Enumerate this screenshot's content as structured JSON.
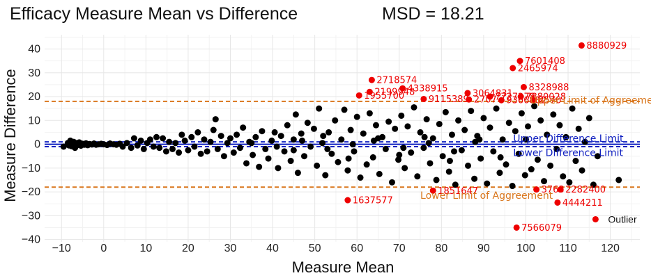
{
  "chart_data": {
    "type": "scatter",
    "title": "Efficacy Measure Mean vs Difference",
    "subtitle": "MSD = 18.21",
    "xlabel": "Measure Mean",
    "ylabel": "Measure Difference",
    "xlim": [
      -14,
      127
    ],
    "ylim": [
      -41,
      46
    ],
    "xticks": [
      -10,
      0,
      10,
      20,
      30,
      40,
      50,
      60,
      70,
      80,
      90,
      100,
      110,
      120
    ],
    "yticks": [
      -40,
      -30,
      -20,
      -10,
      0,
      10,
      20,
      30,
      40
    ],
    "xtick_labels": [
      "−10",
      "0",
      "10",
      "20",
      "30",
      "40",
      "50",
      "60",
      "70",
      "80",
      "90",
      "100",
      "110",
      "120"
    ],
    "ytick_labels": [
      "−40",
      "−30",
      "−20",
      "−10",
      "0",
      "10",
      "20",
      "30",
      "40"
    ],
    "grid": true,
    "colors": {
      "points": "#000000",
      "outlier": "#ee0000",
      "agreement": "#d9761c",
      "difference": "#1020c0"
    },
    "reference_lines": [
      {
        "name": "Upper Limit of Aggreement",
        "y": 18.0,
        "color": "#d9761c",
        "label_x": 101,
        "label_y": 18.5
      },
      {
        "name": "Lower Limit of Aggreement",
        "y": -18.0,
        "color": "#d9761c",
        "label_x": 75,
        "label_y": -21.5
      },
      {
        "name": "Upper Difference Limit",
        "y": 1.0,
        "color": "#1020c0",
        "label_x": 97,
        "label_y": 2.5
      },
      {
        "name": "Lower Difference Limit",
        "y": -1.0,
        "color": "#1020c0",
        "label_x": 97,
        "label_y": -3.5
      }
    ],
    "center_line": {
      "y": 0,
      "color": "#1020c0"
    },
    "legend": {
      "label": "Outlier",
      "position": "bottom-right",
      "x": 116.5,
      "y": -31.5
    },
    "outliers": [
      {
        "id": "8880929",
        "x": 113.2,
        "y": 41.5
      },
      {
        "id": "7601408",
        "x": 98.6,
        "y": 35.0
      },
      {
        "id": "2465974",
        "x": 96.9,
        "y": 32.0
      },
      {
        "id": "2718574",
        "x": 63.5,
        "y": 27.0
      },
      {
        "id": "8328988",
        "x": 99.5,
        "y": 24.0
      },
      {
        "id": "4338915",
        "x": 70.8,
        "y": 23.5
      },
      {
        "id": "2199948",
        "x": 63.0,
        "y": 22.0
      },
      {
        "id": "3064831",
        "x": 86.2,
        "y": 21.5
      },
      {
        "id": "1955700",
        "x": 60.5,
        "y": 20.5
      },
      {
        "id": "7727278",
        "x": 91.5,
        "y": 20.0
      },
      {
        "id": "7880028",
        "x": 98.8,
        "y": 20.0
      },
      {
        "id": "9115389",
        "x": 75.8,
        "y": 19.0
      },
      {
        "id": "2707",
        "x": 86.5,
        "y": 18.8
      },
      {
        "id": "9366882",
        "x": 94.2,
        "y": 18.5
      },
      {
        "id": "2570",
        "x": 101.8,
        "y": 18.5
      },
      {
        "id": "1637577",
        "x": 57.8,
        "y": -23.5
      },
      {
        "id": "1851647",
        "x": 78.0,
        "y": -19.5
      },
      {
        "id": "3763",
        "x": 102.5,
        "y": -19.0
      },
      {
        "id": "2282400",
        "x": 108.2,
        "y": -19.0
      },
      {
        "id": "4444211",
        "x": 107.5,
        "y": -24.5
      },
      {
        "id": "7566079",
        "x": 97.8,
        "y": -35.0
      }
    ],
    "points": [
      [
        -9.5,
        -1.0
      ],
      [
        -8.5,
        0.5
      ],
      [
        -8.2,
        -0.5
      ],
      [
        -7.9,
        1.5
      ],
      [
        -7.6,
        -0.8
      ],
      [
        -7.4,
        0.0
      ],
      [
        -7.1,
        1.0
      ],
      [
        -6.8,
        -1.5
      ],
      [
        -6.5,
        0.5
      ],
      [
        -6.1,
        -0.3
      ],
      [
        -5.8,
        0.8
      ],
      [
        -5.4,
        -0.6
      ],
      [
        -5.0,
        0.2
      ],
      [
        -4.6,
        -0.2
      ],
      [
        -4.2,
        0.4
      ],
      [
        -3.8,
        -0.4
      ],
      [
        -3.3,
        0.1
      ],
      [
        -2.8,
        -0.1
      ],
      [
        -2.3,
        0.3
      ],
      [
        -1.8,
        -0.2
      ],
      [
        -1.2,
        0.0
      ],
      [
        -0.6,
        0.2
      ],
      [
        0.0,
        0.0
      ],
      [
        0.8,
        -0.3
      ],
      [
        1.5,
        0.3
      ],
      [
        2.3,
        0.0
      ],
      [
        3.0,
        -0.2
      ],
      [
        3.8,
        0.2
      ],
      [
        4.5,
        -1.0
      ],
      [
        5.5,
        0.5
      ],
      [
        6.5,
        -1.5
      ],
      [
        7.2,
        2.5
      ],
      [
        8.0,
        -0.5
      ],
      [
        8.8,
        1.5
      ],
      [
        9.5,
        -2.0
      ],
      [
        10.3,
        0.5
      ],
      [
        11.0,
        2.0
      ],
      [
        11.8,
        -1.0
      ],
      [
        12.5,
        3.0
      ],
      [
        13.2,
        -1.5
      ],
      [
        14.0,
        2.5
      ],
      [
        14.8,
        -3.0
      ],
      [
        15.5,
        1.0
      ],
      [
        16.3,
        -2.0
      ],
      [
        17.0,
        0.5
      ],
      [
        17.8,
        -3.5
      ],
      [
        18.5,
        4.0
      ],
      [
        19.2,
        1.5
      ],
      [
        20.0,
        -2.5
      ],
      [
        20.8,
        3.0
      ],
      [
        21.5,
        -1.0
      ],
      [
        22.3,
        5.0
      ],
      [
        23.0,
        -4.0
      ],
      [
        23.8,
        2.0
      ],
      [
        24.5,
        -3.0
      ],
      [
        25.3,
        1.0
      ],
      [
        26.0,
        6.0
      ],
      [
        26.5,
        10.5
      ],
      [
        27.0,
        -2.0
      ],
      [
        27.8,
        3.5
      ],
      [
        28.5,
        -5.0
      ],
      [
        29.3,
        0.5
      ],
      [
        30.0,
        2.5
      ],
      [
        30.8,
        -3.5
      ],
      [
        31.5,
        4.0
      ],
      [
        32.3,
        -1.5
      ],
      [
        33.0,
        7.0
      ],
      [
        33.8,
        -8.0
      ],
      [
        34.5,
        1.0
      ],
      [
        35.3,
        -4.5
      ],
      [
        36.0,
        3.0
      ],
      [
        36.8,
        -9.5
      ],
      [
        37.5,
        5.5
      ],
      [
        38.3,
        -2.0
      ],
      [
        39.0,
        -6.0
      ],
      [
        39.8,
        1.5
      ],
      [
        40.5,
        5.0
      ],
      [
        41.3,
        -10.0
      ],
      [
        42.0,
        3.5
      ],
      [
        42.8,
        -3.0
      ],
      [
        43.5,
        8.0
      ],
      [
        44.3,
        -7.0
      ],
      [
        45.0,
        2.0
      ],
      [
        45.5,
        12.5
      ],
      [
        46.0,
        -12.0
      ],
      [
        46.8,
        4.5
      ],
      [
        47.5,
        -5.0
      ],
      [
        48.3,
        9.0
      ],
      [
        49.0,
        -1.0
      ],
      [
        49.8,
        6.5
      ],
      [
        50.5,
        -9.0
      ],
      [
        51.0,
        15.0
      ],
      [
        51.8,
        0.5
      ],
      [
        52.5,
        -13.0
      ],
      [
        53.3,
        5.0
      ],
      [
        54.0,
        -4.0
      ],
      [
        54.8,
        10.0
      ],
      [
        55.5,
        -7.5
      ],
      [
        56.3,
        2.0
      ],
      [
        57.0,
        14.5
      ],
      [
        57.8,
        -11.0
      ],
      [
        58.5,
        6.0
      ],
      [
        59.3,
        -3.0
      ],
      [
        60.0,
        11.5
      ],
      [
        60.8,
        -14.0
      ],
      [
        61.5,
        4.5
      ],
      [
        62.3,
        -8.5
      ],
      [
        63.0,
        13.0
      ],
      [
        63.8,
        -5.5
      ],
      [
        64.5,
        8.0
      ],
      [
        65.3,
        -12.5
      ],
      [
        66.0,
        3.0
      ],
      [
        66.8,
        -2.0
      ],
      [
        67.5,
        9.5
      ],
      [
        68.3,
        -16.0
      ],
      [
        69.0,
        6.5
      ],
      [
        69.8,
        -6.5
      ],
      [
        70.5,
        12.0
      ],
      [
        71.3,
        -10.0
      ],
      [
        72.0,
        7.5
      ],
      [
        72.8,
        -3.5
      ],
      [
        73.5,
        15.5
      ],
      [
        74.3,
        -13.5
      ],
      [
        75.0,
        5.0
      ],
      [
        75.8,
        -1.5
      ],
      [
        76.5,
        10.5
      ],
      [
        77.3,
        -8.0
      ],
      [
        78.0,
        2.5
      ],
      [
        78.8,
        -15.0
      ],
      [
        79.5,
        8.5
      ],
      [
        80.3,
        -5.0
      ],
      [
        81.0,
        13.5
      ],
      [
        81.8,
        -11.5
      ],
      [
        82.5,
        4.0
      ],
      [
        83.3,
        -17.0
      ],
      [
        84.0,
        10.0
      ],
      [
        84.8,
        -2.5
      ],
      [
        85.5,
        6.0
      ],
      [
        86.3,
        -9.0
      ],
      [
        87.0,
        14.0
      ],
      [
        87.8,
        -14.5
      ],
      [
        88.5,
        3.5
      ],
      [
        89.3,
        -6.0
      ],
      [
        90.0,
        11.0
      ],
      [
        90.8,
        -16.5
      ],
      [
        91.5,
        7.0
      ],
      [
        92.3,
        -3.0
      ],
      [
        93.0,
        15.0
      ],
      [
        93.8,
        -12.0
      ],
      [
        94.5,
        2.0
      ],
      [
        95.3,
        -8.5
      ],
      [
        96.0,
        9.0
      ],
      [
        96.8,
        -17.5
      ],
      [
        97.5,
        5.5
      ],
      [
        98.3,
        -4.0
      ],
      [
        99.0,
        13.0
      ],
      [
        99.8,
        -13.0
      ],
      [
        100.5,
        7.5
      ],
      [
        101.3,
        -10.5
      ],
      [
        102.0,
        16.0
      ],
      [
        102.8,
        -6.5
      ],
      [
        103.5,
        10.0
      ],
      [
        104.3,
        -15.5
      ],
      [
        105.0,
        4.0
      ],
      [
        105.8,
        -9.0
      ],
      [
        106.5,
        12.5
      ],
      [
        107.3,
        -2.0
      ],
      [
        108.0,
        8.0
      ],
      [
        108.8,
        -13.5
      ],
      [
        109.5,
        3.0
      ],
      [
        110.3,
        -16.0
      ],
      [
        111.0,
        15.0
      ],
      [
        111.8,
        -7.0
      ],
      [
        112.5,
        6.5
      ],
      [
        113.3,
        -11.0
      ],
      [
        114.0,
        1.0
      ],
      [
        115.0,
        11.0
      ],
      [
        116.0,
        -17.0
      ],
      [
        117.0,
        -5.0
      ],
      [
        122.0,
        -15.0
      ],
      [
        45.0,
        -2.5
      ],
      [
        52.0,
        3.5
      ],
      [
        58.0,
        -6.0
      ],
      [
        64.0,
        1.5
      ],
      [
        70.0,
        -4.5
      ],
      [
        76.0,
        3.0
      ],
      [
        82.0,
        -7.0
      ],
      [
        88.0,
        1.0
      ],
      [
        94.0,
        -5.5
      ],
      [
        100.0,
        2.0
      ],
      [
        35.0,
        0.5
      ],
      [
        41.0,
        -1.0
      ],
      [
        47.0,
        1.5
      ],
      [
        53.0,
        -2.0
      ],
      [
        59.0,
        0.0
      ],
      [
        65.0,
        2.5
      ],
      [
        71.0,
        -1.5
      ],
      [
        77.0,
        0.5
      ],
      [
        83.0,
        -3.0
      ],
      [
        89.0,
        2.0
      ]
    ]
  }
}
